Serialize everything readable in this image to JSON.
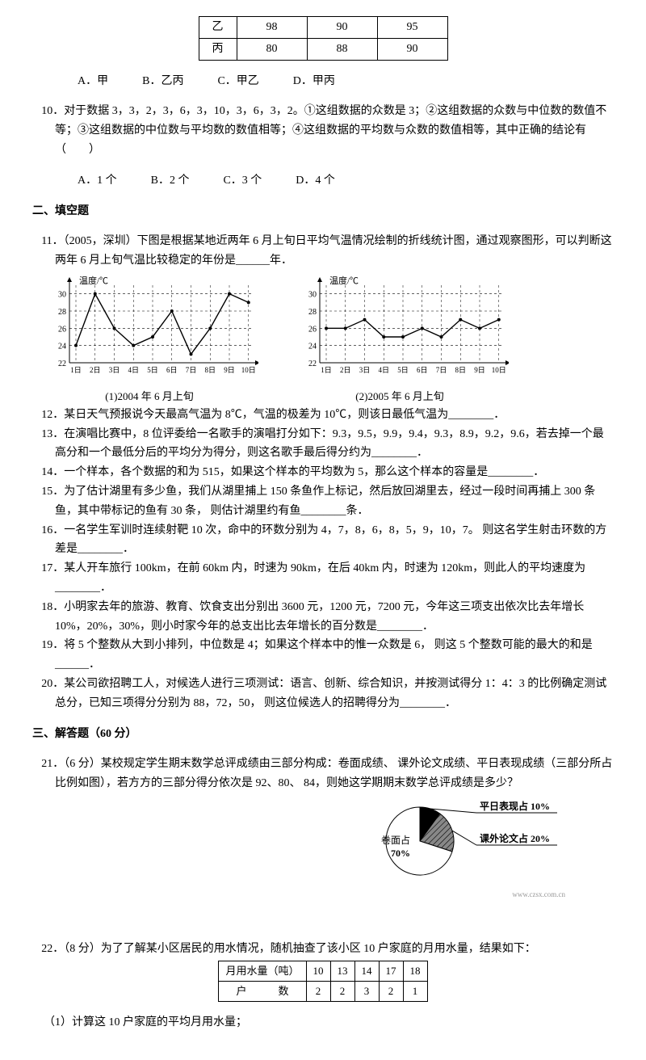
{
  "top_table": {
    "rows": [
      {
        "label": "乙",
        "cells": [
          "98",
          "90",
          "95"
        ]
      },
      {
        "label": "丙",
        "cells": [
          "80",
          "88",
          "90"
        ]
      }
    ]
  },
  "q9_options": "A．甲　　　B．乙丙　　　C．甲乙　　　D．甲丙",
  "q10": {
    "stem": "10．对于数据 3，3，2，3，6，3，10，3，6，3，2。①这组数据的众数是 3；②这组数据的众数与中位数的数值不等；③这组数据的中位数与平均数的数值相等；④这组数据的平均数与众数的数值相等，其中正确的结论有（　　）",
    "options": "A．1 个　　　B．2 个　　　C．3 个　　　D．4 个"
  },
  "section2": "二、填空题",
  "q11": "11．（2005，深圳）下图是根据某地近两年 6 月上旬日平均气温情况绘制的折线统计图，通过观察图形，可以判断这两年 6 月上旬气温比较稳定的年份是______年．",
  "chart2004_caption": "(1)2004 年 6 月上旬",
  "chart2005_caption": "(2)2005 年 6 月上旬",
  "chart": {
    "axis_title": "温度/℃",
    "y_ticks": [
      22,
      24,
      26,
      28,
      30
    ],
    "x_labels": [
      "1日",
      "2日",
      "3日",
      "4日",
      "5日",
      "6日",
      "7日",
      "8日",
      "9日",
      "10日"
    ],
    "data_2004": [
      24,
      30,
      26,
      24,
      25,
      28,
      23,
      26,
      30,
      29
    ],
    "data_2005": [
      26,
      26,
      27,
      25,
      25,
      26,
      25,
      27,
      26,
      27
    ],
    "line_color": "#000000",
    "grid_dash": "3,3",
    "bg": "#ffffff",
    "ylim": [
      22,
      31
    ]
  },
  "q12": "12．某日天气预报说今天最高气温为 8℃，气温的极差为 10℃，则该日最低气温为________．",
  "q13": "13．在演唱比赛中，8 位评委给一名歌手的演唱打分如下：9.3，9.5，9.9，9.4，9.3，8.9，9.2，9.6，若去掉一个最高分和一个最低分后的平均分为得分，则这名歌手最后得分约为________．",
  "q14": "14．一个样本，各个数据的和为 515，如果这个样本的平均数为 5，那么这个样本的容量是________．",
  "q15": "15．为了估计湖里有多少鱼，我们从湖里捕上 150 条鱼作上标记，然后放回湖里去，经过一段时间再捕上 300 条鱼，其中带标记的鱼有 30 条， 则估计湖里约有鱼________条．",
  "q16": "16．一名学生军训时连续射靶 10 次，命中的环数分别为 4，7，8，6，8，5，9，10，7。 则这名学生射击环数的方差是________．",
  "q17": "17．某人开车旅行 100km，在前 60km 内，时速为 90km，在后 40km 内，时速为 120km，则此人的平均速度为________．",
  "q18": "18．小明家去年的旅游、教育、饮食支出分别出 3600 元，1200 元，7200 元，今年这三项支出依次比去年增长10%，20%，30%，则小时家今年的总支出比去年增长的百分数是________．",
  "q19": "19．将 5 个整数从大到小排列，中位数是 4；如果这个样本中的惟一众数是 6， 则这 5 个整数可能的最大的和是______．",
  "q20": "20．某公司欲招聘工人，对候选人进行三项测试：语言、创新、综合知识，并按测试得分 1：4：3 的比例确定测试总分，已知三项得分分别为 88，72，50， 则这位候选人的招聘得分为________．",
  "section3": "三、解答题（60 分）",
  "q21": "21．（6 分）某校规定学生期末数学总评成绩由三部分构成：卷面成绩、 课外论文成绩、平日表现成绩（三部分所占比例如图），若方方的三部分得分依次是 92、80、 84，则她这学期期末数学总评成绩是多少？",
  "pie": {
    "labels": {
      "paper": "卷面占",
      "paper_pct": "70%",
      "daily": "平日表现占 10%",
      "thesis": "课外论文占 20%"
    },
    "colors": {
      "paper": "#ffffff",
      "thesis": "#555555",
      "daily": "#000000",
      "stroke": "#000000"
    }
  },
  "url_note": "www.czsx.com.cn",
  "q22": "22．（8 分）为了了解某小区居民的用水情况，随机抽查了该小区 10 户家庭的月用水量，结果如下：",
  "water_table": {
    "header": [
      "月用水量（吨）",
      "10",
      "13",
      "14",
      "17",
      "18"
    ],
    "row2": [
      "户　　　数",
      "2",
      "2",
      "3",
      "2",
      "1"
    ]
  },
  "q22_sub": "（1）计算这 10 户家庭的平均月用水量；"
}
